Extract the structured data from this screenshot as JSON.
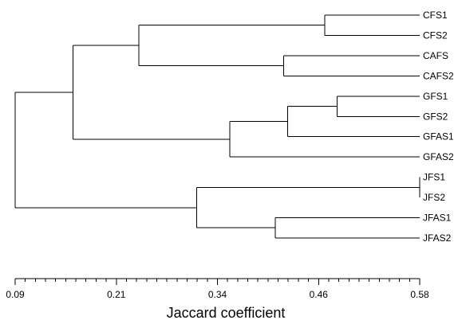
{
  "chart_data": {
    "type": "dendrogram",
    "xlabel": "Jaccard coefficient",
    "xlim": [
      0.09,
      0.58
    ],
    "ticks": [
      "0.09",
      "0.21",
      "0.34",
      "0.46",
      "0.58"
    ],
    "leaves": [
      "CFS1",
      "CFS2",
      "CAFS",
      "CAFS2",
      "GFS1",
      "GFS2",
      "GFAS1",
      "GFAS2",
      "JFS1",
      "JFS2",
      "JFAS1",
      "JFAS2"
    ],
    "merges": [
      {
        "id": "m1",
        "children": [
          "JFS1",
          "JFS2"
        ],
        "coefficient": 0.58
      },
      {
        "id": "m2",
        "children": [
          "GFS1",
          "GFS2"
        ],
        "coefficient": 0.48
      },
      {
        "id": "m3",
        "children": [
          "CFS1",
          "CFS2"
        ],
        "coefficient": 0.465
      },
      {
        "id": "m4",
        "children": [
          "m2",
          "GFAS1"
        ],
        "coefficient": 0.42
      },
      {
        "id": "m5",
        "children": [
          "CAFS",
          "CAFS2"
        ],
        "coefficient": 0.415
      },
      {
        "id": "m6",
        "children": [
          "JFAS1",
          "JFAS2"
        ],
        "coefficient": 0.405
      },
      {
        "id": "m7",
        "children": [
          "m4",
          "GFAS2"
        ],
        "coefficient": 0.35
      },
      {
        "id": "m8",
        "children": [
          "m1",
          "m6"
        ],
        "coefficient": 0.31
      },
      {
        "id": "m9",
        "children": [
          "m3",
          "m5"
        ],
        "coefficient": 0.24
      },
      {
        "id": "m10",
        "children": [
          "m9",
          "m7"
        ],
        "coefficient": 0.16
      },
      {
        "id": "m11",
        "children": [
          "m10",
          "m8"
        ],
        "coefficient": 0.09
      }
    ]
  }
}
